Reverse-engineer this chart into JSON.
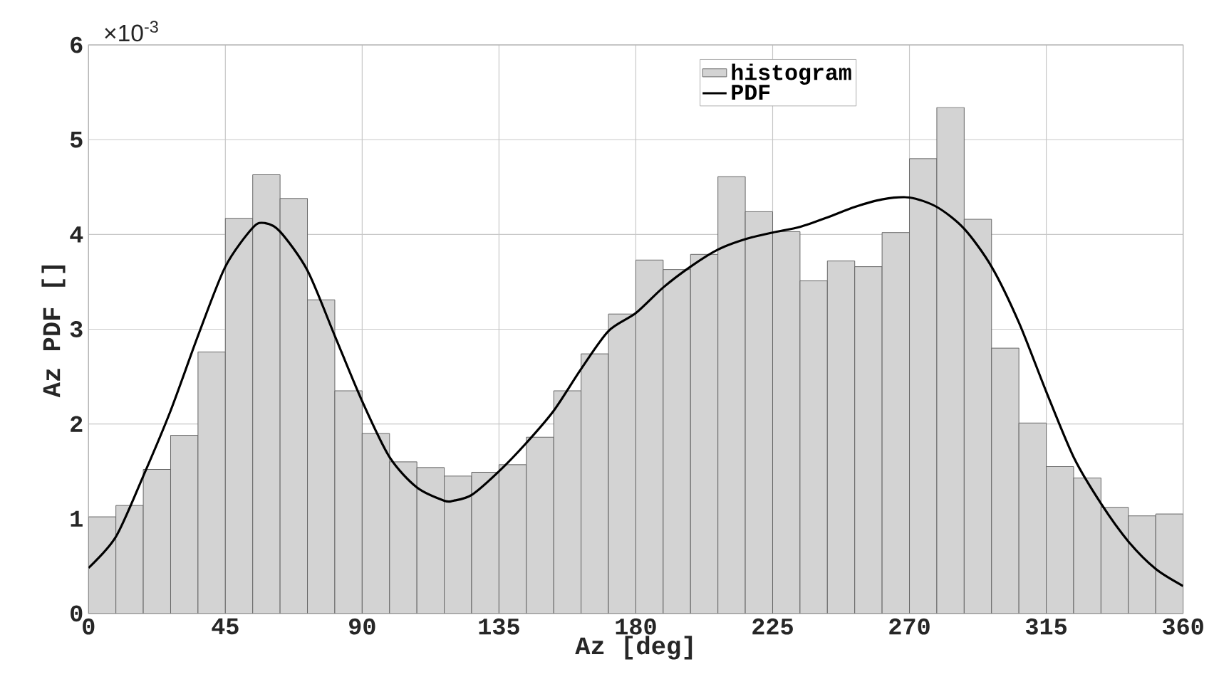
{
  "chart_data": {
    "type": "histogram",
    "xlabel": "Az [deg]",
    "ylabel": "Az PDF []",
    "annotations": [
      "×10$^{-3}$"
    ],
    "bins": [
      0,
      9,
      18,
      27,
      36,
      45,
      54,
      63,
      72,
      81,
      90,
      99,
      108,
      117,
      126,
      135,
      144,
      153,
      162,
      171,
      180,
      189,
      198,
      207,
      216,
      225,
      234,
      243,
      252,
      261,
      270,
      279,
      288,
      297,
      306,
      315,
      324,
      333,
      342,
      351,
      360
    ],
    "series": [
      {
        "name": "histogram",
        "color": "#d3d3d3",
        "values": [
          1.02,
          1.14,
          1.52,
          1.88,
          2.76,
          4.17,
          4.63,
          4.38,
          3.31,
          2.35,
          1.9,
          1.6,
          1.54,
          1.45,
          1.49,
          1.57,
          1.86,
          2.35,
          2.74,
          3.16,
          3.73,
          3.63,
          3.79,
          4.61,
          4.24,
          4.03,
          3.51,
          3.72,
          3.66,
          4.02,
          4.8,
          5.34,
          4.16,
          2.8,
          2.01,
          1.55,
          1.43,
          1.12,
          1.03,
          1.05
        ]
      },
      {
        "name": "PDF",
        "type": "line",
        "color": "#000000",
        "x": [
          0,
          9,
          18,
          27,
          36,
          45,
          54,
          58,
          63,
          72,
          81,
          90,
          99,
          108,
          117,
          120,
          126,
          135,
          144,
          153,
          162,
          171,
          180,
          189,
          198,
          207,
          216,
          225,
          234,
          243,
          252,
          261,
          270,
          279,
          288,
          297,
          306,
          315,
          324,
          333,
          342,
          351,
          360
        ],
        "values": [
          0.48,
          0.81,
          1.45,
          2.14,
          2.93,
          3.66,
          4.07,
          4.12,
          4.03,
          3.62,
          2.93,
          2.24,
          1.65,
          1.33,
          1.19,
          1.19,
          1.25,
          1.5,
          1.8,
          2.14,
          2.58,
          2.98,
          3.17,
          3.44,
          3.66,
          3.84,
          3.95,
          4.02,
          4.08,
          4.18,
          4.29,
          4.37,
          4.39,
          4.29,
          4.06,
          3.66,
          3.07,
          2.34,
          1.65,
          1.16,
          0.76,
          0.47,
          0.29
        ]
      }
    ],
    "xlim": [
      0,
      360
    ],
    "xticks": [
      0,
      45,
      90,
      135,
      180,
      225,
      270,
      315,
      360
    ],
    "ylim": [
      0,
      6
    ],
    "yticks": [
      0,
      1,
      2,
      3,
      4,
      5,
      6
    ],
    "grid": true,
    "legend": "top"
  }
}
